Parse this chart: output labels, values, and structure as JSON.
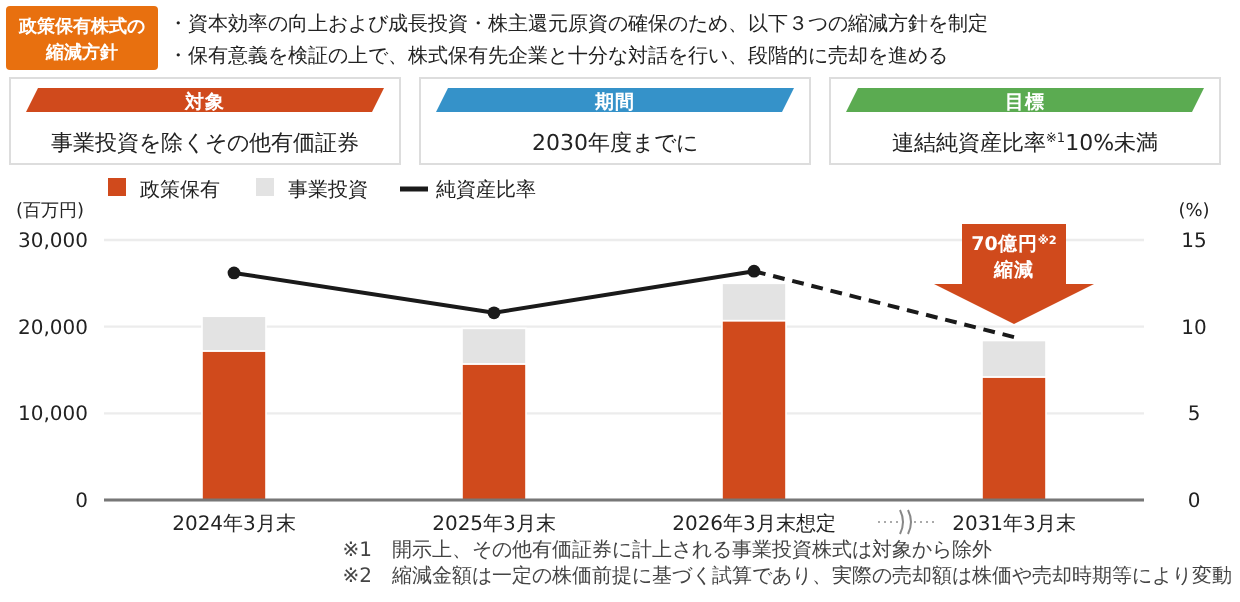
{
  "chart_data": {
    "type": "bar",
    "stacked": true,
    "categories": [
      "2024年3月末",
      "2025年3月末",
      "2026年3月末想定",
      "2031年3月末"
    ],
    "series": [
      {
        "name": "政策保有",
        "color": "#d04a1c",
        "values": [
          17200,
          15700,
          20700,
          14200
        ]
      },
      {
        "name": "事業投資",
        "color": "#e3e3e3",
        "values": [
          4000,
          4100,
          4300,
          4200
        ]
      },
      {
        "name": "純資産比率",
        "type": "line",
        "axis": "y2",
        "color": "#1a1a1a",
        "marker": "circle",
        "line_style": "solid",
        "values": [
          13.1,
          10.8,
          13.2,
          null
        ]
      },
      {
        "type": "line",
        "axis": "y2",
        "color": "#1a1a1a",
        "marker": "none",
        "line_style": "dashed",
        "values": [
          null,
          null,
          13.2,
          9.4
        ]
      }
    ],
    "ylabel": "(百万円)",
    "y2label": "(%)",
    "ylim": [
      0,
      30000
    ],
    "yticks": [
      0,
      {
        "value": 10000,
        "label": "10,000"
      },
      {
        "value": 20000,
        "label": "20,000"
      },
      {
        "value": 30000,
        "label": "30,000"
      }
    ],
    "y2lim": [
      0,
      15
    ],
    "y2ticks": [
      0,
      5,
      10,
      15
    ],
    "grid": "y",
    "legend": "top left",
    "annotations": [
      "政策保有株式の",
      "縮減方針",
      "・資本効率の向上および成長投資・株主還元原資の確保のため、以下３つの縮減方針を制定",
      "・保有意義を検証の上で、株式保有先企業と十分な対話を行い、段階的に売却を進める",
      "対象",
      "事業投資を除くその他有価証券",
      "期間",
      "2030年度までに",
      "目標",
      "連結純資産比率$^{※1}$10%未満",
      "70億円$^{※2}$",
      "縮減",
      "※1　開示上、その他有価証券に計上される事業投資株式は対象から除外",
      "※2　縮減金額は一定の株価前提に基づく試算であり、実際の売却額は株価や売却時期等により変動"
    ]
  }
}
